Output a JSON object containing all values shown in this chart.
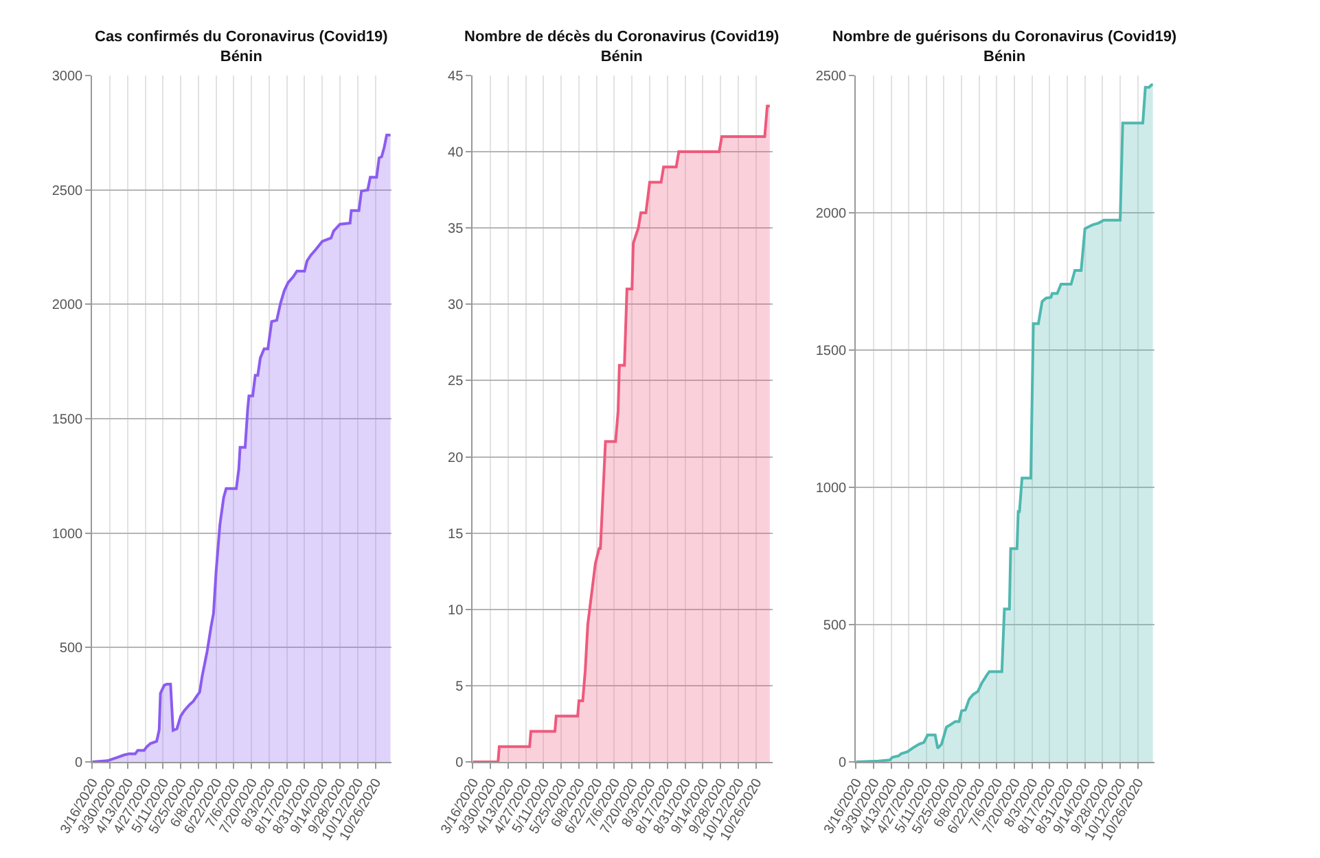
{
  "chart_data": [
    {
      "type": "area",
      "title": "Cas confirmés du Coronavirus (Covid19)\nBénin",
      "grid": true,
      "xlim": [
        "2020-03-16",
        "2020-11-08"
      ],
      "ylim": [
        0,
        3000
      ],
      "yticks": [
        0,
        500,
        1000,
        1500,
        2000,
        2500,
        3000
      ],
      "xticks": [
        {
          "value": "2020-03-16",
          "label": "3/16/2020"
        },
        {
          "value": "2020-03-30",
          "label": "3/30/2020"
        },
        {
          "value": "2020-04-13",
          "label": "4/13/2020"
        },
        {
          "value": "2020-04-27",
          "label": "4/27/2020"
        },
        {
          "value": "2020-05-11",
          "label": "5/11/2020"
        },
        {
          "value": "2020-05-25",
          "label": "5/25/2020"
        },
        {
          "value": "2020-06-08",
          "label": "6/8/2020"
        },
        {
          "value": "2020-06-22",
          "label": "6/22/2020"
        },
        {
          "value": "2020-07-06",
          "label": "7/6/2020"
        },
        {
          "value": "2020-07-20",
          "label": "7/20/2020"
        },
        {
          "value": "2020-08-03",
          "label": "8/3/2020"
        },
        {
          "value": "2020-08-17",
          "label": "8/17/2020"
        },
        {
          "value": "2020-08-31",
          "label": "8/31/2020"
        },
        {
          "value": "2020-09-14",
          "label": "9/14/2020"
        },
        {
          "value": "2020-09-28",
          "label": "9/28/2020"
        },
        {
          "value": "2020-10-12",
          "label": "10/12/2020"
        },
        {
          "value": "2020-10-26",
          "label": "10/26/2020"
        }
      ],
      "x": [
        "2020-03-16",
        "2020-03-28",
        "2020-04-05",
        "2020-04-10",
        "2020-04-14",
        "2020-04-19",
        "2020-04-21",
        "2020-04-26",
        "2020-04-28",
        "2020-05-01",
        "2020-05-06",
        "2020-05-08",
        "2020-05-09",
        "2020-05-12",
        "2020-05-14",
        "2020-05-17",
        "2020-05-19",
        "2020-05-22",
        "2020-05-25",
        "2020-05-28",
        "2020-06-01",
        "2020-06-04",
        "2020-06-07",
        "2020-06-09",
        "2020-06-11",
        "2020-06-15",
        "2020-06-18",
        "2020-06-20",
        "2020-06-22",
        "2020-06-25",
        "2020-06-28",
        "2020-06-30",
        "2020-07-08",
        "2020-07-10",
        "2020-07-11",
        "2020-07-15",
        "2020-07-17",
        "2020-07-18",
        "2020-07-21",
        "2020-07-23",
        "2020-07-25",
        "2020-07-27",
        "2020-07-30",
        "2020-08-02",
        "2020-08-05",
        "2020-08-09",
        "2020-08-12",
        "2020-08-15",
        "2020-08-18",
        "2020-08-22",
        "2020-08-25",
        "2020-08-31",
        "2020-09-02",
        "2020-09-05",
        "2020-09-09",
        "2020-09-14",
        "2020-09-21",
        "2020-09-23",
        "2020-09-28",
        "2020-10-06",
        "2020-10-07",
        "2020-10-13",
        "2020-10-15",
        "2020-10-20",
        "2020-10-22",
        "2020-10-27",
        "2020-10-29",
        "2020-10-31",
        "2020-11-02",
        "2020-11-04",
        "2020-11-07"
      ],
      "series": [
        {
          "color": "#8b5cf0",
          "values": [
            0,
            5,
            20,
            30,
            35,
            35,
            50,
            50,
            65,
            80,
            90,
            140,
            300,
            335,
            340,
            340,
            138,
            145,
            200,
            225,
            250,
            265,
            290,
            305,
            375,
            485,
            590,
            650,
            830,
            1035,
            1155,
            1195,
            1195,
            1280,
            1375,
            1375,
            1540,
            1600,
            1600,
            1690,
            1690,
            1765,
            1805,
            1805,
            1925,
            1930,
            2005,
            2060,
            2095,
            2120,
            2145,
            2145,
            2190,
            2215,
            2240,
            2275,
            2290,
            2320,
            2350,
            2355,
            2410,
            2410,
            2495,
            2500,
            2555,
            2555,
            2640,
            2645,
            2685,
            2740,
            2740
          ]
        }
      ]
    },
    {
      "type": "area",
      "title": "Nombre de décès du Coronavirus (Covid19)\nBénin",
      "grid": true,
      "xlim": [
        "2020-03-16",
        "2020-11-08"
      ],
      "ylim": [
        0,
        45
      ],
      "yticks": [
        0,
        5,
        10,
        15,
        20,
        25,
        30,
        35,
        40,
        45
      ],
      "xticks": [
        {
          "value": "2020-03-16",
          "label": "3/16/2020"
        },
        {
          "value": "2020-03-30",
          "label": "3/30/2020"
        },
        {
          "value": "2020-04-13",
          "label": "4/13/2020"
        },
        {
          "value": "2020-04-27",
          "label": "4/27/2020"
        },
        {
          "value": "2020-05-11",
          "label": "5/11/2020"
        },
        {
          "value": "2020-05-25",
          "label": "5/25/2020"
        },
        {
          "value": "2020-06-08",
          "label": "6/8/2020"
        },
        {
          "value": "2020-06-22",
          "label": "6/22/2020"
        },
        {
          "value": "2020-07-06",
          "label": "7/6/2020"
        },
        {
          "value": "2020-07-20",
          "label": "7/20/2020"
        },
        {
          "value": "2020-08-03",
          "label": "8/3/2020"
        },
        {
          "value": "2020-08-17",
          "label": "8/17/2020"
        },
        {
          "value": "2020-08-31",
          "label": "8/31/2020"
        },
        {
          "value": "2020-09-14",
          "label": "9/14/2020"
        },
        {
          "value": "2020-09-28",
          "label": "9/28/2020"
        },
        {
          "value": "2020-10-12",
          "label": "10/12/2020"
        },
        {
          "value": "2020-10-26",
          "label": "10/26/2020"
        }
      ],
      "x": [
        "2020-03-16",
        "2020-04-05",
        "2020-04-06",
        "2020-04-30",
        "2020-05-01",
        "2020-05-20",
        "2020-05-21",
        "2020-06-07",
        "2020-06-08",
        "2020-06-11",
        "2020-06-13",
        "2020-06-15",
        "2020-06-18",
        "2020-06-21",
        "2020-06-24",
        "2020-06-25",
        "2020-06-29",
        "2020-07-07",
        "2020-07-09",
        "2020-07-10",
        "2020-07-14",
        "2020-07-16",
        "2020-07-20",
        "2020-07-21",
        "2020-07-25",
        "2020-07-27",
        "2020-07-31",
        "2020-08-03",
        "2020-08-12",
        "2020-08-14",
        "2020-08-24",
        "2020-08-26",
        "2020-09-27",
        "2020-09-29",
        "2020-11-02",
        "2020-11-04",
        "2020-11-06"
      ],
      "series": [
        {
          "color": "#ee5a7c",
          "values": [
            0,
            0,
            1,
            1,
            2,
            2,
            3,
            3,
            4,
            4,
            6,
            9,
            11,
            13,
            14,
            14,
            21,
            21,
            23,
            26,
            26,
            31,
            31,
            34,
            35,
            36,
            36,
            38,
            38,
            39,
            39,
            40,
            40,
            41,
            41,
            43,
            43
          ]
        }
      ]
    },
    {
      "type": "area",
      "title": "Nombre de guérisons du Coronavirus (Covid19)\nBénin",
      "grid": true,
      "xlim": [
        "2020-03-16",
        "2020-11-08"
      ],
      "ylim": [
        0,
        2500
      ],
      "yticks": [
        0,
        500,
        1000,
        1500,
        2000,
        2500
      ],
      "xticks": [
        {
          "value": "2020-03-16",
          "label": "3/16/2020"
        },
        {
          "value": "2020-03-30",
          "label": "3/30/2020"
        },
        {
          "value": "2020-04-13",
          "label": "4/13/2020"
        },
        {
          "value": "2020-04-27",
          "label": "4/27/2020"
        },
        {
          "value": "2020-05-11",
          "label": "5/11/2020"
        },
        {
          "value": "2020-05-25",
          "label": "5/25/2020"
        },
        {
          "value": "2020-06-08",
          "label": "6/8/2020"
        },
        {
          "value": "2020-06-22",
          "label": "6/22/2020"
        },
        {
          "value": "2020-07-06",
          "label": "7/6/2020"
        },
        {
          "value": "2020-07-20",
          "label": "7/20/2020"
        },
        {
          "value": "2020-08-03",
          "label": "8/3/2020"
        },
        {
          "value": "2020-08-17",
          "label": "8/17/2020"
        },
        {
          "value": "2020-08-31",
          "label": "8/31/2020"
        },
        {
          "value": "2020-09-14",
          "label": "9/14/2020"
        },
        {
          "value": "2020-09-28",
          "label": "9/28/2020"
        },
        {
          "value": "2020-10-12",
          "label": "10/12/2020"
        },
        {
          "value": "2020-10-26",
          "label": "10/26/2020"
        }
      ],
      "x": [
        "2020-03-16",
        "2020-04-03",
        "2020-04-12",
        "2020-04-14",
        "2020-04-19",
        "2020-04-21",
        "2020-04-26",
        "2020-04-30",
        "2020-05-05",
        "2020-05-09",
        "2020-05-12",
        "2020-05-18",
        "2020-05-20",
        "2020-05-23",
        "2020-05-27",
        "2020-05-30",
        "2020-06-03",
        "2020-06-06",
        "2020-06-08",
        "2020-06-11",
        "2020-06-14",
        "2020-06-17",
        "2020-06-21",
        "2020-06-24",
        "2020-06-28",
        "2020-06-30",
        "2020-07-10",
        "2020-07-12",
        "2020-07-16",
        "2020-07-17",
        "2020-07-22",
        "2020-07-23",
        "2020-07-24",
        "2020-07-26",
        "2020-08-02",
        "2020-08-04",
        "2020-08-08",
        "2020-08-11",
        "2020-08-14",
        "2020-08-18",
        "2020-08-19",
        "2020-08-23",
        "2020-08-26",
        "2020-09-03",
        "2020-09-06",
        "2020-09-11",
        "2020-09-14",
        "2020-09-16",
        "2020-09-20",
        "2020-09-25",
        "2020-09-29",
        "2020-10-12",
        "2020-10-14",
        "2020-10-30",
        "2020-11-01",
        "2020-11-04",
        "2020-11-06",
        "2020-11-07"
      ],
      "series": [
        {
          "color": "#4fb8b0",
          "values": [
            0,
            3,
            7,
            17,
            22,
            30,
            37,
            50,
            64,
            71,
            98,
            98,
            50,
            64,
            127,
            135,
            147,
            147,
            186,
            189,
            228,
            245,
            257,
            287,
            316,
            329,
            329,
            557,
            557,
            777,
            777,
            912,
            912,
            1034,
            1034,
            1596,
            1596,
            1677,
            1689,
            1692,
            1706,
            1706,
            1740,
            1740,
            1790,
            1790,
            1942,
            1947,
            1956,
            1963,
            1973,
            1973,
            2327,
            2327,
            2457,
            2457,
            2466,
            2466
          ]
        }
      ]
    }
  ]
}
